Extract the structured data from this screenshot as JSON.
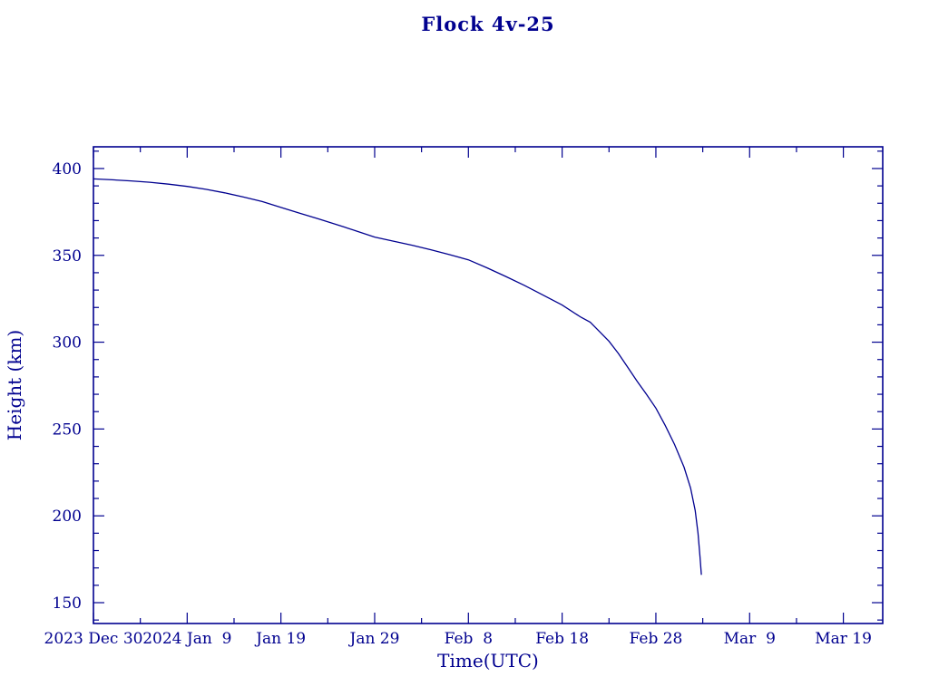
{
  "window": {
    "background": "#ffffff"
  },
  "colors": {
    "ink": "#00008f",
    "background": "#ffffff"
  },
  "chart_data": {
    "type": "line",
    "title": "Flock 4v-25",
    "xlabel": "Time(UTC)",
    "ylabel": "Height (km)",
    "grid": false,
    "legend": "none",
    "line_color": "#00008f",
    "x_unit": "days after 2023 Dec 30 (UTC)",
    "x_range_days": [
      0,
      84.2
    ],
    "y_range_km": [
      138,
      412.5
    ],
    "x_major_ticks": {
      "days": [
        0,
        10,
        20,
        30,
        40,
        50,
        60,
        70,
        80
      ],
      "labels": [
        "2023 Dec 30",
        "2024 Jan  9",
        "Jan 19",
        "Jan 29",
        "Feb  8",
        "Feb 18",
        "Feb 28",
        "Mar  9",
        "Mar 19"
      ]
    },
    "x_minor_step_days": 5,
    "y_major_ticks_km": [
      150,
      200,
      250,
      300,
      350,
      400
    ],
    "y_minor_step_km": 10,
    "series": [
      {
        "name": "Flock 4v-25 height",
        "points_day_km": [
          [
            0,
            394
          ],
          [
            2,
            393.5
          ],
          [
            4,
            392.9
          ],
          [
            6,
            392.1
          ],
          [
            8,
            391
          ],
          [
            10,
            389.7
          ],
          [
            12,
            388
          ],
          [
            14,
            386
          ],
          [
            16,
            383.6
          ],
          [
            18,
            381
          ],
          [
            20,
            377.6
          ],
          [
            22,
            374.3
          ],
          [
            24,
            371
          ],
          [
            26,
            367.6
          ],
          [
            28,
            364.1
          ],
          [
            30,
            360.5
          ],
          [
            32,
            358.2
          ],
          [
            34,
            355.8
          ],
          [
            36,
            353.2
          ],
          [
            38,
            350.4
          ],
          [
            40,
            347.4
          ],
          [
            42,
            342.8
          ],
          [
            44,
            337.8
          ],
          [
            46,
            332.6
          ],
          [
            48,
            327
          ],
          [
            50,
            321.4
          ],
          [
            52,
            314.4
          ],
          [
            53,
            311.5
          ],
          [
            54,
            306
          ],
          [
            55,
            300.5
          ],
          [
            56,
            293.5
          ],
          [
            57,
            285.5
          ],
          [
            58,
            277.5
          ],
          [
            59,
            270
          ],
          [
            60,
            262
          ],
          [
            61,
            252
          ],
          [
            62,
            241
          ],
          [
            63,
            228
          ],
          [
            63.7,
            216
          ],
          [
            64.2,
            203
          ],
          [
            64.5,
            190
          ],
          [
            64.7,
            177
          ],
          [
            64.85,
            166
          ]
        ]
      }
    ],
    "annotations": []
  }
}
